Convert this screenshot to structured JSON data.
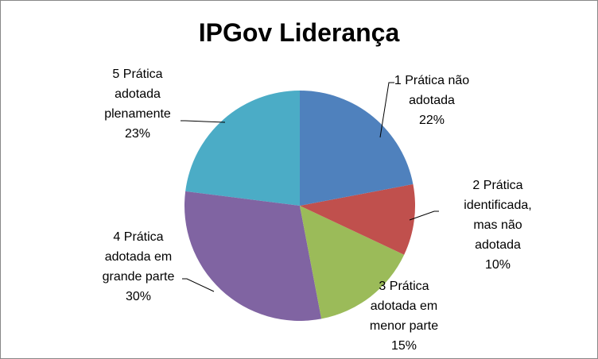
{
  "chart_data": {
    "type": "pie",
    "title": "IPGov Liderança",
    "categories": [
      "1 Prática não adotada",
      "2 Prática identificada, mas não adotada",
      "3 Prática adotada em menor parte",
      "4 Prática adotada em grande parte",
      "5 Prática adotada plenamente"
    ],
    "values": [
      22,
      10,
      15,
      30,
      23
    ],
    "value_labels": [
      "22%",
      "10%",
      "15%",
      "30%",
      "23%"
    ],
    "colors": [
      "#4f81bd",
      "#c0504d",
      "#9bbb59",
      "#8064a2",
      "#4bacc6"
    ]
  }
}
